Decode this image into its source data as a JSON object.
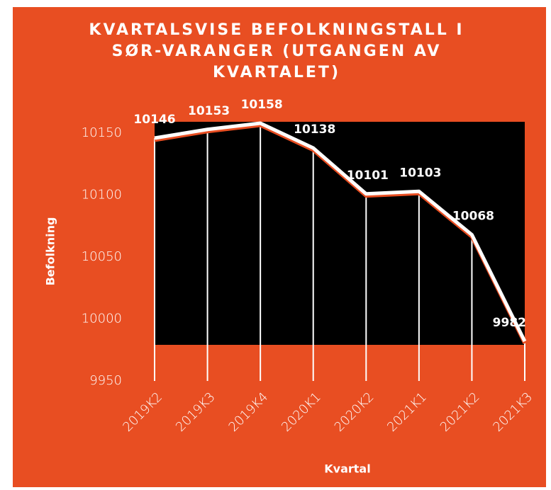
{
  "chart_data": {
    "type": "line",
    "title": "KVARTALSVISE BEFOLKNINGSTALL I SØR-VARANGER (UTGANGEN AV KVARTALET)",
    "x_label": "Kvartal",
    "y_label": "Befolkning",
    "categories": [
      "2019K2",
      "2019K3",
      "2019K4",
      "2020K1",
      "2020K2",
      "2021K1",
      "2021K2",
      "2021K3"
    ],
    "series": [
      {
        "name": "Befolkning",
        "color": "#ffffff",
        "values": [
          10146,
          10153,
          10158,
          10138,
          10101,
          10103,
          10068,
          9982
        ]
      }
    ],
    "ylim": [
      9950,
      10160
    ],
    "yticks": [
      9950,
      10000,
      10050,
      10100,
      10150
    ],
    "grid": false
  }
}
